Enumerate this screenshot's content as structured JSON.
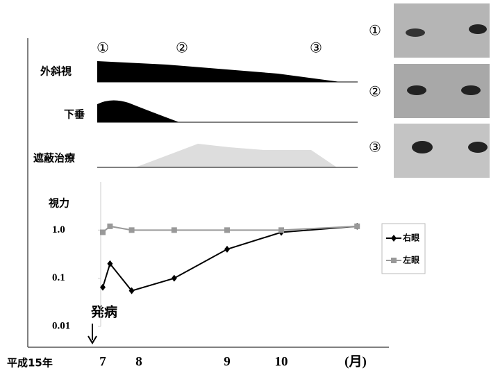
{
  "stages": [
    "①",
    "②",
    "③"
  ],
  "rows": [
    "外斜視",
    "下垂",
    "遮蔽治療"
  ],
  "photos": [
    "①",
    "②",
    "③"
  ],
  "chart_data": {
    "type": "line",
    "y_label": "視力",
    "x_prefix": "平成15年",
    "x_unit": "(月)",
    "annotation": "発病",
    "x": [
      7,
      7.2,
      7.8,
      8.4,
      9,
      10,
      11.4
    ],
    "xticks": [
      7,
      8,
      9,
      10
    ],
    "log_y": true,
    "ylim": [
      0.01,
      10
    ],
    "yticks": [
      {
        "value": 1,
        "label": "1.0"
      },
      0.1,
      0.01
    ],
    "legend_position": "right",
    "series": [
      {
        "name": "右眼",
        "color": "#000000",
        "marker": "diamond",
        "values": [
          0.065,
          0.2,
          0.055,
          0.1,
          0.4,
          0.9,
          1.2
        ]
      },
      {
        "name": "左眼",
        "color": "#999999",
        "marker": "square",
        "values": [
          0.9,
          1.2,
          1.0,
          1.0,
          1.0,
          1.0,
          1.2
        ]
      }
    ]
  }
}
